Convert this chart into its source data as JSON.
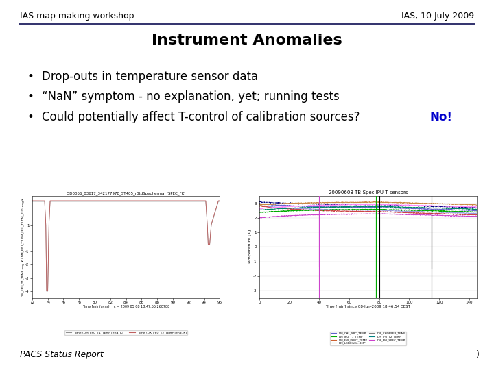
{
  "header_left": "IAS map making workshop",
  "header_right": "IAS, 10 July 2009",
  "title": "Instrument Anomalies",
  "bullets": [
    "Drop-outs in temperature sensor data",
    "“NaN” symptom - no explanation, yet; running tests",
    "Could potentially affect T-control of calibration sources? "
  ],
  "bullet_no": "No!",
  "footer_left": "PACS Status Report",
  "footer_right": ")",
  "bg_color": "#ffffff",
  "header_line_color": "#363670",
  "title_fontsize": 16,
  "header_fontsize": 9,
  "bullet_fontsize": 12,
  "footer_fontsize": 9,
  "no_color": "#0000cc",
  "text_color": "#000000",
  "plot1_title": "OD0056_03617_342177978_ST405_r3tdSpechermal (SPEC_FK)",
  "plot1_xlabel": "Time [min(avss)]   c = 2009 05 08 18:47:55.260788",
  "plot1_ylabel": "DM_FPU_T1_TEMP eng. K / DM_FPU_T1.DM_FPU_T2.DM_PUT: eng K",
  "plot2_title": "20090608 TB-Spec IPU T sensors",
  "plot2_xlabel": "Time [min] since 08-Jun-2009 18:46:54 CEST",
  "plot2_ylabel": "Temperature [K]",
  "legend1_labels": [
    "Time (DM_FPU_T1_TEMP [eng. K]",
    "Time (DX_FPU_T2_TEMP [eng. K]"
  ],
  "legend1_colors": [
    "#909090",
    "#c06060"
  ],
  "legend2_labels": [
    "DM_CAL_SRC_TEMP",
    "DM_IFU_T1_TEMP",
    "DM_FW_PHOT_TEMP",
    "DM_LKADING...BMP",
    "DM_CHOPPER_TEMP",
    "DM_IFU_T2_TEMP",
    "DM_FW_SPEC_TEMP"
  ],
  "legend2_colors": [
    "#6060cc",
    "#00aa00",
    "#cc6030",
    "#a0a060",
    "#808080",
    "#008080",
    "#cc40cc"
  ]
}
